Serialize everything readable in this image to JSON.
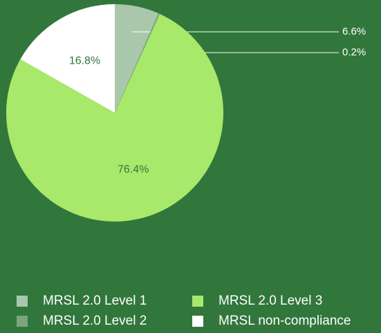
{
  "chart_data": {
    "type": "pie",
    "categories": [
      "MRSL 2.0 Level 1",
      "MRSL 2.0 Level 2",
      "MRSL 2.0 Level 3",
      "MRSL non-compliance"
    ],
    "values": [
      6.6,
      0.2,
      76.4,
      16.8
    ],
    "value_labels": [
      "6.6%",
      "0.2%",
      "76.4%",
      "16.8%"
    ],
    "colors": [
      "#a9c8ab",
      "#7ba57e",
      "#a8e86a",
      "#ffffff"
    ]
  }
}
